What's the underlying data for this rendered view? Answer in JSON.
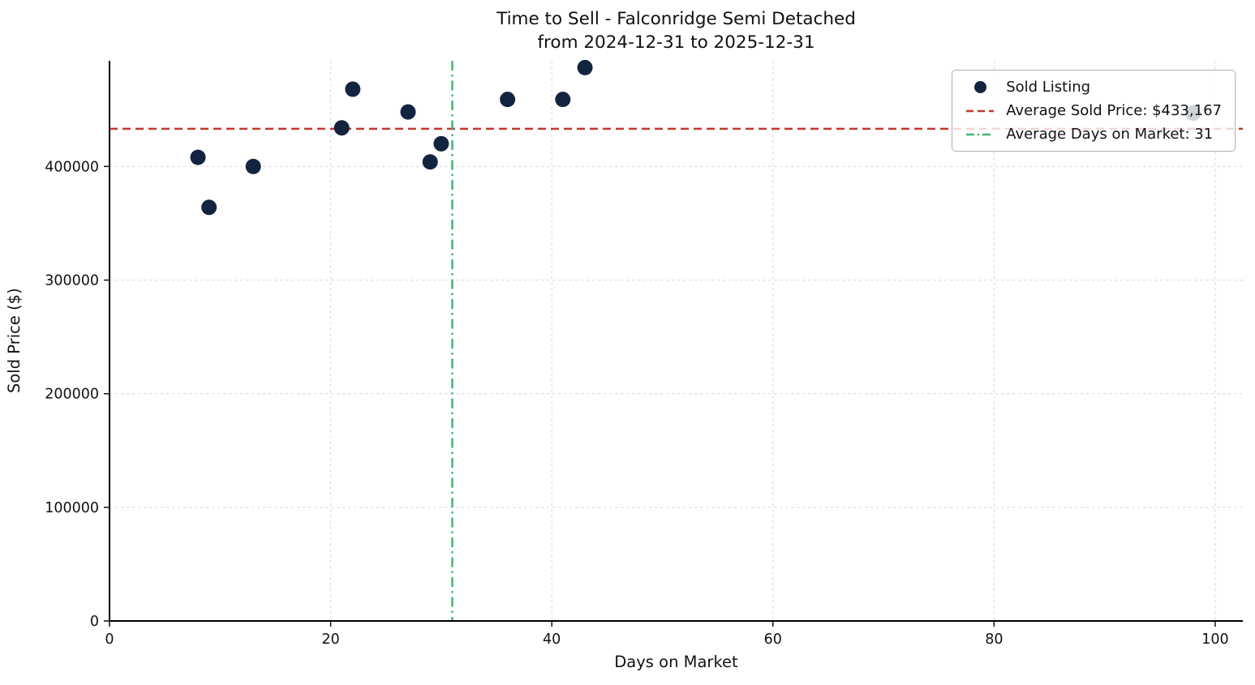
{
  "chart_data": {
    "type": "scatter",
    "title": "Time to Sell - Falconridge Semi Detached",
    "subtitle": "from 2024-12-31 to 2025-12-31",
    "xlabel": "Days on Market",
    "ylabel": "Sold Price ($)",
    "xlim": [
      0,
      102.5
    ],
    "ylim": [
      0,
      493000
    ],
    "xticks": [
      0,
      20,
      40,
      60,
      80,
      100
    ],
    "yticks": [
      0,
      100000,
      200000,
      300000,
      400000
    ],
    "grid": true,
    "legend_position": "upper right",
    "series": [
      {
        "name": "Sold Listing",
        "points": [
          {
            "days": 8,
            "price": 408000
          },
          {
            "days": 9,
            "price": 364000
          },
          {
            "days": 13,
            "price": 400000
          },
          {
            "days": 21,
            "price": 434000
          },
          {
            "days": 22,
            "price": 468000
          },
          {
            "days": 27,
            "price": 448000
          },
          {
            "days": 29,
            "price": 404000
          },
          {
            "days": 30,
            "price": 420000
          },
          {
            "days": 36,
            "price": 459000
          },
          {
            "days": 41,
            "price": 459000
          },
          {
            "days": 43,
            "price": 487000
          },
          {
            "days": 98,
            "price": 447000
          }
        ]
      }
    ],
    "avg_sold_price": 433167,
    "avg_days_on_market": 31,
    "legend": {
      "sold_listing": "Sold Listing",
      "avg_price": "Average Sold Price: $433,167",
      "avg_days": "Average Days on Market: 31"
    },
    "colors": {
      "point": "#132440",
      "avg_price_line": "#c0392b",
      "avg_days_line": "#3cb371",
      "grid": "#d9d9d9",
      "axis": "#000000",
      "text": "#111111"
    }
  }
}
